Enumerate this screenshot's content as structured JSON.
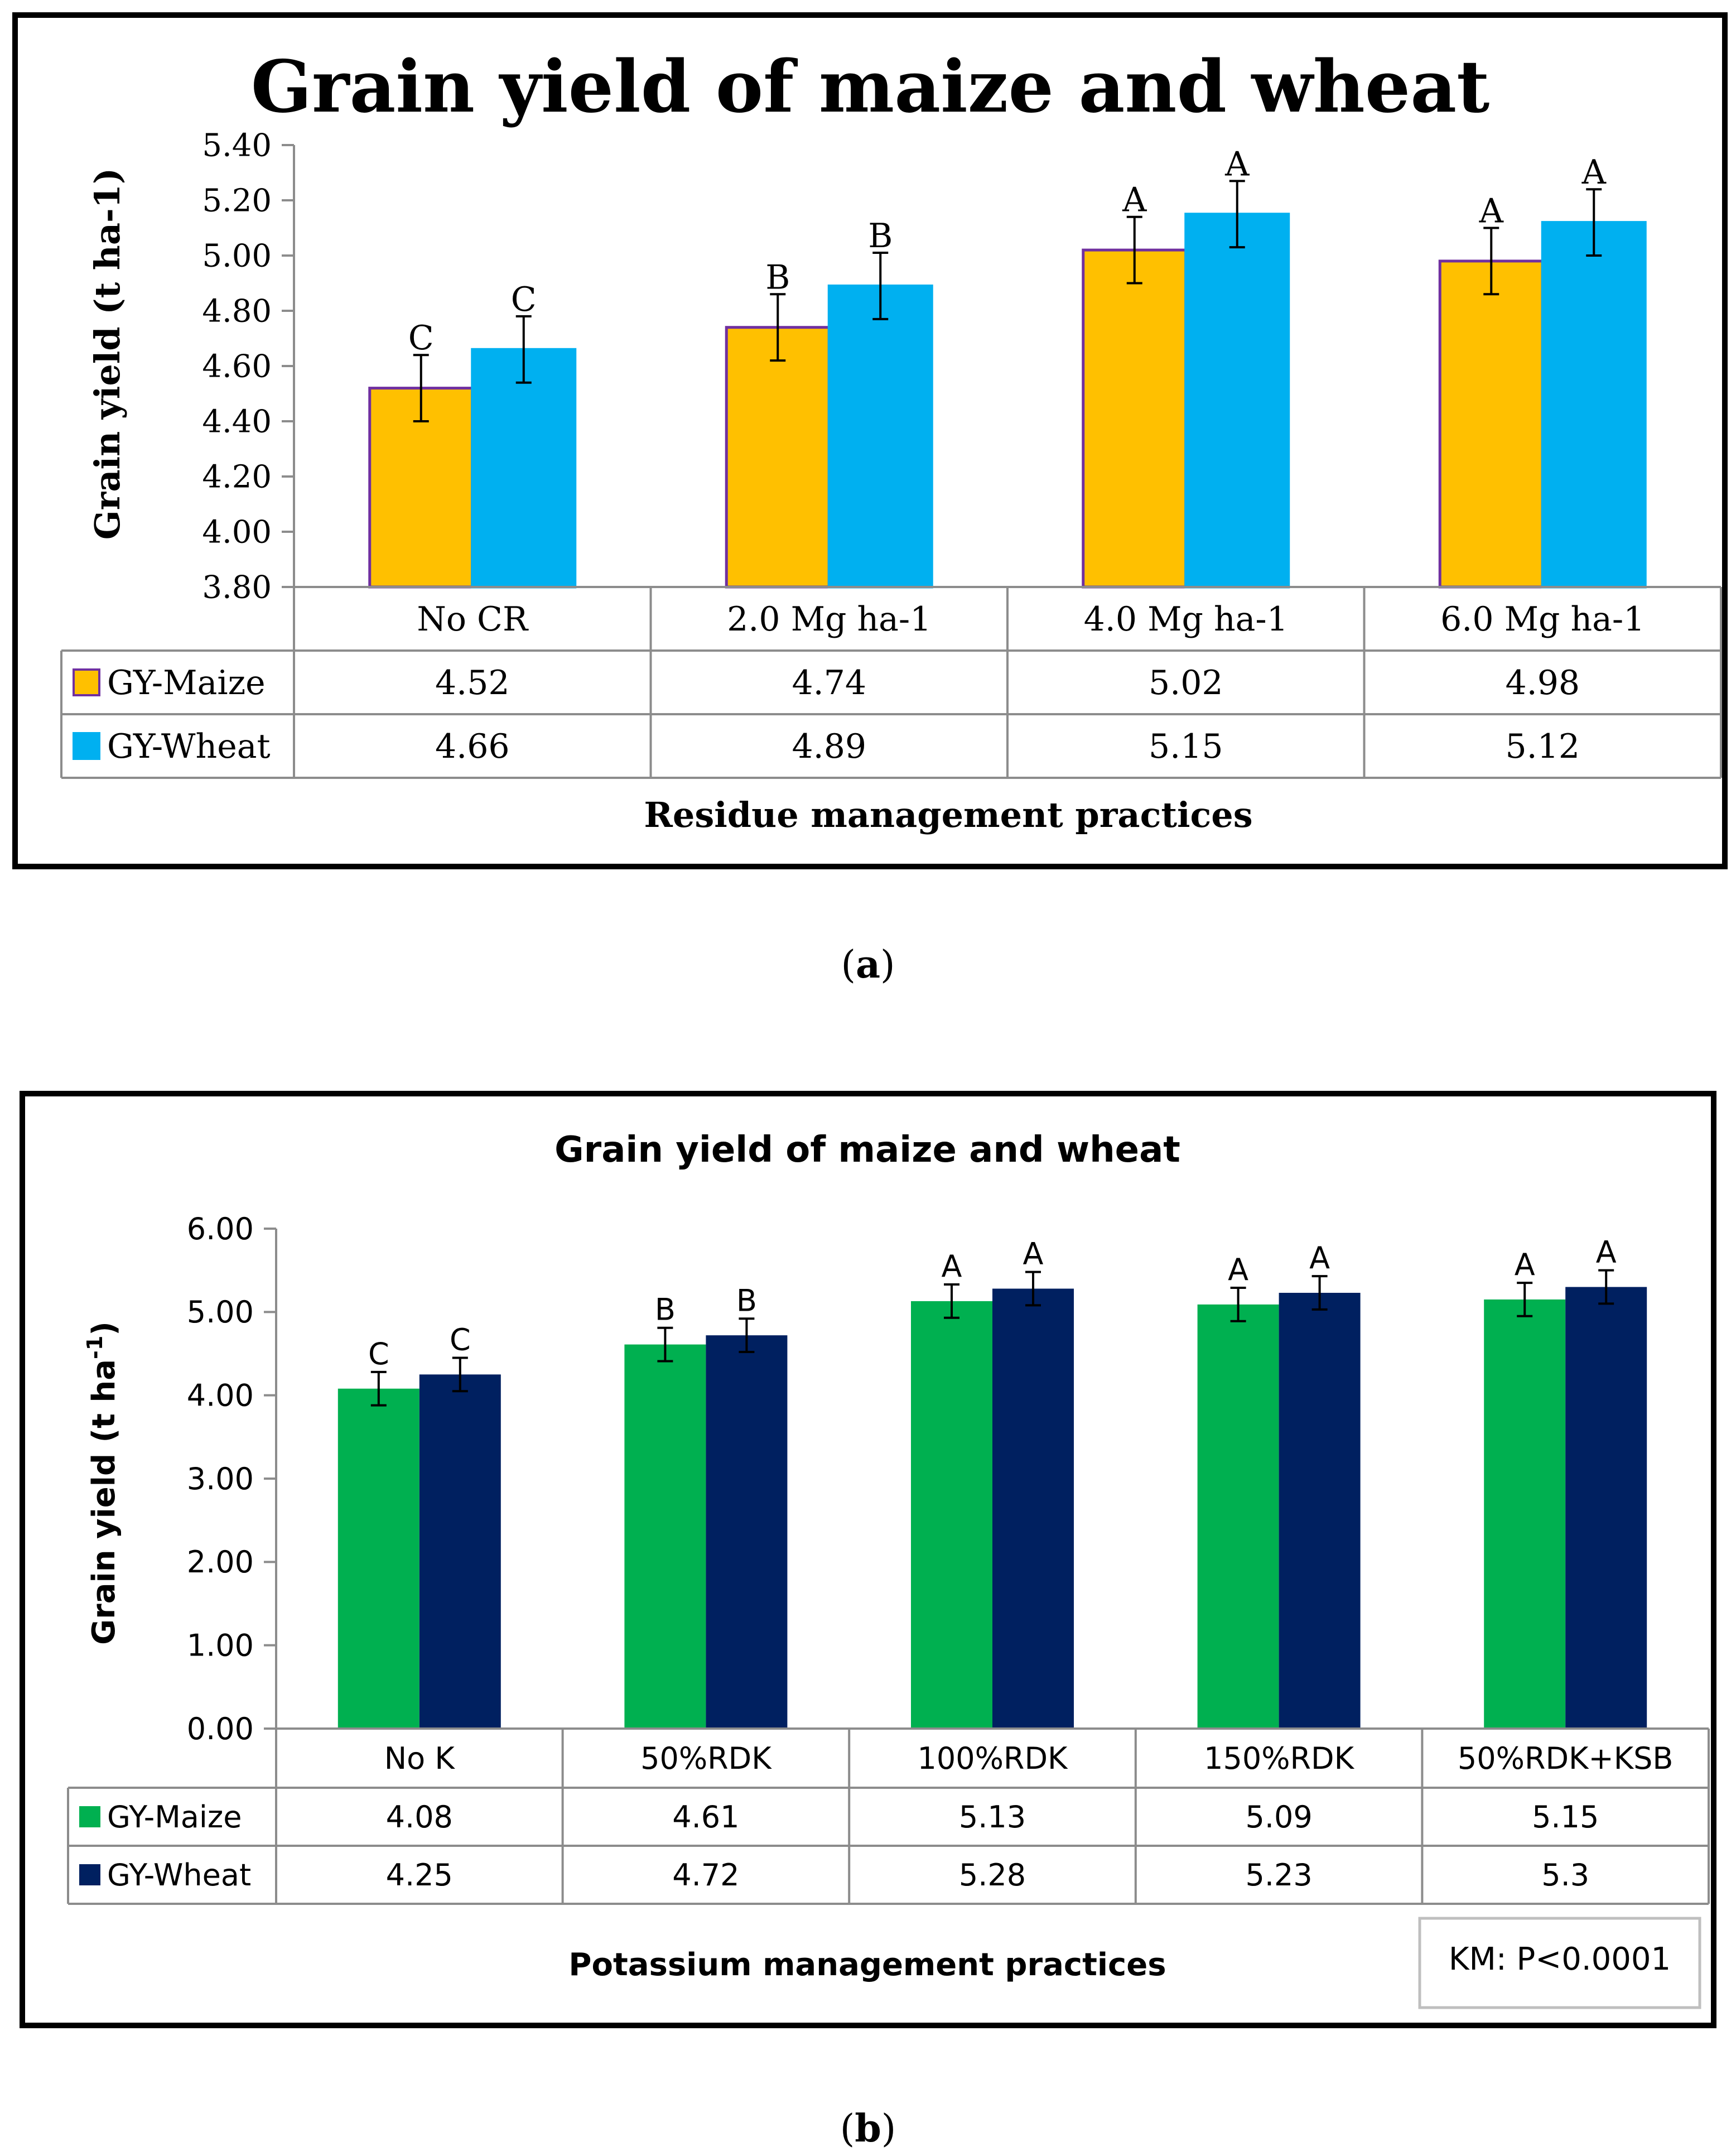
{
  "chart_data": [
    {
      "type": "bar",
      "panel_label": "a",
      "title": "Grain yield of maize and wheat",
      "xlabel": "Residue management practices",
      "ylabel": "Grain yield (t ha-1)",
      "ylim": [
        3.8,
        5.4
      ],
      "yticks": [
        "3.80",
        "4.00",
        "4.20",
        "4.40",
        "4.60",
        "4.80",
        "5.00",
        "5.20",
        "5.40"
      ],
      "categories": [
        "No CR",
        "2.0 Mg ha-1",
        "4.0 Mg ha-1",
        "6.0 Mg ha-1"
      ],
      "series": [
        {
          "name": "GY-Maize",
          "values": [
            4.52,
            4.74,
            5.02,
            4.98
          ],
          "labels": [
            "4.52",
            "4.74",
            "5.02",
            "4.98"
          ],
          "letters": [
            "C",
            "B",
            "A",
            "A"
          ],
          "error": 0.12,
          "color": "#FFC000",
          "stroke": "#7030A0"
        },
        {
          "name": "GY-Wheat",
          "values": [
            4.66,
            4.89,
            5.15,
            5.12
          ],
          "labels": [
            "4.66",
            "4.89",
            "5.15",
            "5.12"
          ],
          "letters": [
            "C",
            "B",
            "A",
            "A"
          ],
          "error": 0.12,
          "color": "#00B0F0",
          "stroke": "#00B0F0"
        }
      ],
      "grid": false,
      "legend": "data-table"
    },
    {
      "type": "bar",
      "panel_label": "b",
      "title": "Grain yield of maize and wheat",
      "xlabel": "Potassium management practices",
      "ylabel": "Grain yield (t ha",
      "ylabel_sup": "-1",
      "ylabel_end": ")",
      "ylim": [
        0,
        6
      ],
      "yticks": [
        "0.00",
        "1.00",
        "2.00",
        "3.00",
        "4.00",
        "5.00",
        "6.00"
      ],
      "categories": [
        "No K",
        "50%RDK",
        "100%RDK",
        "150%RDK",
        "50%RDK+KSB"
      ],
      "series": [
        {
          "name": "GY-Maize",
          "values": [
            4.08,
            4.61,
            5.13,
            5.09,
            5.15
          ],
          "labels": [
            "4.08",
            "4.61",
            "5.13",
            "5.09",
            "5.15"
          ],
          "letters": [
            "C",
            "B",
            "A",
            "A",
            "A"
          ],
          "error": 0.2,
          "color": "#00B050",
          "stroke": "#00B050"
        },
        {
          "name": "GY-Wheat",
          "values": [
            4.25,
            4.72,
            5.28,
            5.23,
            5.3
          ],
          "labels": [
            "4.25",
            "4.72",
            "5.28",
            "5.23",
            "5.3"
          ],
          "letters": [
            "C",
            "B",
            "A",
            "A",
            "A"
          ],
          "error": 0.2,
          "color": "#002060",
          "stroke": "#002060"
        }
      ],
      "annotation": "KM: P<0.0001",
      "grid": false,
      "legend": "data-table"
    }
  ]
}
